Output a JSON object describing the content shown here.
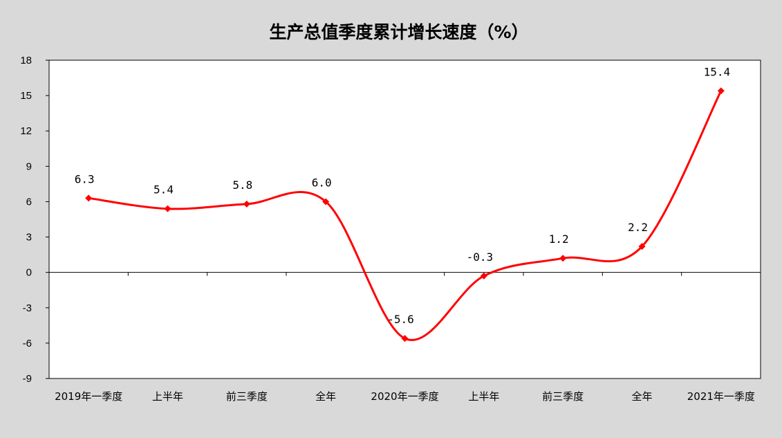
{
  "chart_data": {
    "type": "line",
    "title": "生产总值季度累计增长速度（%）",
    "categories": [
      "2019年一季度",
      "上半年",
      "前三季度",
      "全年",
      "2020年一季度",
      "上半年",
      "前三季度",
      "全年",
      "2021年一季度"
    ],
    "series": [
      {
        "values": [
          6.3,
          5.4,
          5.8,
          6.0,
          -5.6,
          -0.3,
          1.2,
          2.2,
          15.4
        ]
      }
    ],
    "data_labels": [
      "6.3",
      "5.4",
      "5.8",
      "6.0",
      "-5.6",
      "-0.3",
      "1.2",
      "2.2",
      "15.4"
    ],
    "yticks": [
      "18",
      "15",
      "12",
      "9",
      "6",
      "3",
      "0",
      "-3",
      "-6",
      "-9"
    ],
    "ylim": [
      -9,
      18
    ],
    "smooth": true,
    "grid": false,
    "legend": "none",
    "colors": {
      "line": "#ff0000",
      "background": "#d9d9d9",
      "plot": "#ffffff"
    }
  }
}
